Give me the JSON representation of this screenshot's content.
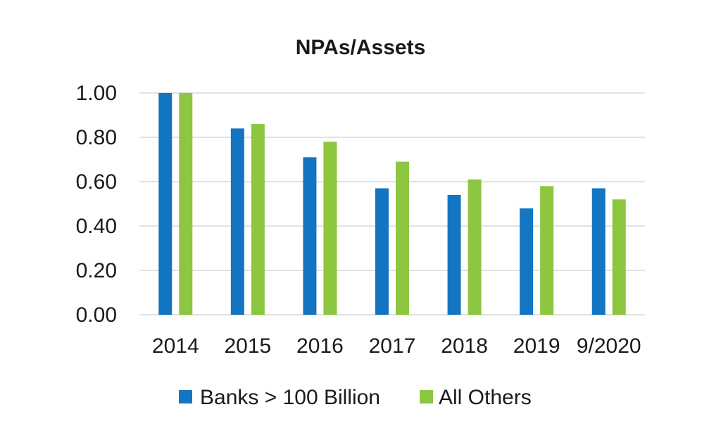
{
  "chart_data": {
    "type": "bar",
    "title": "NPAs/Assets",
    "xlabel": "",
    "ylabel": "",
    "categories": [
      "2014",
      "2015",
      "2016",
      "2017",
      "2018",
      "2019",
      "9/2020"
    ],
    "series": [
      {
        "name": "Banks > 100 Billion",
        "color": "#1475c3",
        "values": [
          1.0,
          0.84,
          0.71,
          0.57,
          0.54,
          0.48,
          0.57
        ]
      },
      {
        "name": "All Others",
        "color": "#8dc63f",
        "values": [
          1.0,
          0.86,
          0.78,
          0.69,
          0.61,
          0.58,
          0.52
        ]
      }
    ],
    "ylim": [
      0,
      1.0
    ],
    "yticks": [
      "0.00",
      "0.20",
      "0.40",
      "0.60",
      "0.80",
      "1.00"
    ],
    "grid": true,
    "legend_position": "bottom"
  }
}
